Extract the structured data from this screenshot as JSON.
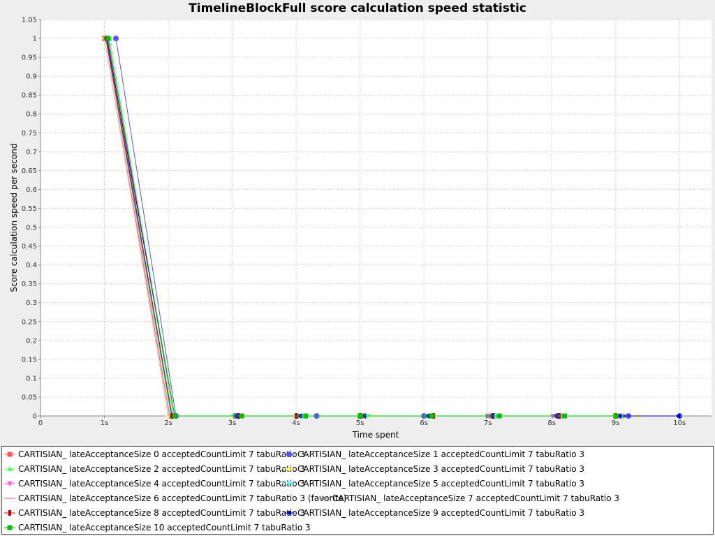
{
  "chart_data": {
    "type": "line",
    "title": "TimelineBlockFull score calculation speed statistic",
    "xlabel": "Time spent",
    "ylabel": "Score calculation speed per second",
    "xlim": [
      0,
      10.5
    ],
    "ylim": [
      0,
      1.05
    ],
    "grid": true,
    "legend_position": "bottom",
    "x_ticks": [
      {
        "value": 0,
        "label": "0"
      },
      {
        "value": 1,
        "label": "1s"
      },
      {
        "value": 2,
        "label": "2s"
      },
      {
        "value": 3,
        "label": "3s"
      },
      {
        "value": 4,
        "label": "4s"
      },
      {
        "value": 5,
        "label": "5s"
      },
      {
        "value": 6,
        "label": "6s"
      },
      {
        "value": 7,
        "label": "7s"
      },
      {
        "value": 8,
        "label": "8s"
      },
      {
        "value": 9,
        "label": "9s"
      },
      {
        "value": 10,
        "label": "10s"
      }
    ],
    "y_ticks": [
      {
        "value": 0,
        "label": "0"
      },
      {
        "value": 0.05,
        "label": "0.05"
      },
      {
        "value": 0.1,
        "label": "0.1"
      },
      {
        "value": 0.15,
        "label": "0.15"
      },
      {
        "value": 0.2,
        "label": "0.2"
      },
      {
        "value": 0.25,
        "label": "0.25"
      },
      {
        "value": 0.3,
        "label": "0.3"
      },
      {
        "value": 0.35,
        "label": "0.35"
      },
      {
        "value": 0.4,
        "label": "0.4"
      },
      {
        "value": 0.45,
        "label": "0.45"
      },
      {
        "value": 0.5,
        "label": "0.5"
      },
      {
        "value": 0.55,
        "label": "0.55"
      },
      {
        "value": 0.6,
        "label": "0.6"
      },
      {
        "value": 0.65,
        "label": "0.65"
      },
      {
        "value": 0.7,
        "label": "0.7"
      },
      {
        "value": 0.75,
        "label": "0.75"
      },
      {
        "value": 0.8,
        "label": "0.8"
      },
      {
        "value": 0.85,
        "label": "0.85"
      },
      {
        "value": 0.9,
        "label": "0.9"
      },
      {
        "value": 0.95,
        "label": "0.95"
      },
      {
        "value": 1,
        "label": "1"
      },
      {
        "value": 1.05,
        "label": "1.05"
      }
    ],
    "series": [
      {
        "name": "CARTISIAN_ lateAcceptanceSize 0 acceptedCountLimit 7 tabuRatio 3",
        "color": "#ff5555",
        "marker": "square",
        "x": [
          1.0,
          2.02,
          3.05,
          4.02,
          5.05,
          6.1,
          7.05,
          8.1,
          9.05
        ],
        "y": [
          1,
          0,
          0,
          0,
          0,
          0,
          0,
          0,
          0
        ]
      },
      {
        "name": "CARTISIAN_ lateAcceptanceSize 1 acceptedCountLimit 7 tabuRatio 3",
        "color": "#5555ff",
        "marker": "circle",
        "x": [
          1.18,
          2.12,
          3.05,
          4.32,
          5.02,
          6.0,
          7.1,
          8.1,
          9.2,
          10.0
        ],
        "y": [
          1,
          0,
          0,
          0,
          0,
          0,
          0,
          0,
          0,
          0
        ]
      },
      {
        "name": "CARTISIAN_ lateAcceptanceSize 2 acceptedCountLimit 7 tabuRatio 3",
        "color": "#55ff55",
        "marker": "triangle-up",
        "x": [
          1.08,
          2.08,
          3.1,
          4.12,
          5.1,
          6.05,
          7.15,
          8.15,
          9.08
        ],
        "y": [
          1,
          0,
          0,
          0,
          0,
          0,
          0,
          0,
          0
        ]
      },
      {
        "name": "CARTISIAN_ lateAcceptanceSize 3 acceptedCountLimit 7 tabuRatio 3",
        "color": "#ffff55",
        "marker": "diamond",
        "x": [
          1.0,
          2.0,
          3.0,
          4.05,
          5.15,
          6.08,
          7.1,
          8.18,
          9.35
        ],
        "y": [
          1,
          0,
          0,
          0,
          0,
          0,
          0,
          0,
          0
        ]
      },
      {
        "name": "CARTISIAN_ lateAcceptanceSize 4 acceptedCountLimit 7 tabuRatio 3",
        "color": "#ff55ff",
        "marker": "triangle-down",
        "x": [
          1.05,
          2.05,
          3.08,
          4.08,
          5.08,
          6.08,
          7.05,
          8.02,
          9.05
        ],
        "y": [
          1,
          0,
          0,
          0,
          0,
          0,
          0,
          0,
          0
        ]
      },
      {
        "name": "CARTISIAN_ lateAcceptanceSize 5 acceptedCountLimit 7 tabuRatio 3",
        "color": "#55ffff",
        "marker": "triangle-down",
        "x": [
          1.02,
          2.03,
          3.02,
          4.1,
          5.12,
          6.05,
          7.12,
          8.15,
          9.1
        ],
        "y": [
          1,
          0,
          0,
          0,
          0,
          0,
          0,
          0,
          0
        ]
      },
      {
        "name": "CARTISIAN_ lateAcceptanceSize 6 acceptedCountLimit 7 tabuRatio 3 (favorite)",
        "color": "#ffaaaa",
        "marker": "none",
        "x": [
          1.0,
          2.0,
          3.0,
          4.0,
          5.0,
          6.0,
          7.0,
          8.0,
          9.0
        ],
        "y": [
          1,
          0,
          0,
          0,
          0,
          0,
          0,
          0,
          0
        ]
      },
      {
        "name": "CARTISIAN_ lateAcceptanceSize 7 acceptedCountLimit 7 tabuRatio 3",
        "color": "#808080",
        "marker": "triangle-right",
        "x": [
          1.02,
          2.05,
          3.05,
          4.05,
          5.05,
          6.05,
          7.0,
          8.1,
          9.15
        ],
        "y": [
          1,
          0,
          0,
          0,
          0,
          0,
          0,
          0,
          0
        ]
      },
      {
        "name": "CARTISIAN_ lateAcceptanceSize 8 acceptedCountLimit 7 tabuRatio 3",
        "color": "#c00000",
        "marker": "rect-tall",
        "x": [
          1.03,
          2.06,
          3.1,
          4.0,
          5.0,
          6.15,
          7.08,
          8.12,
          9.0
        ],
        "y": [
          1,
          0,
          0,
          0,
          0,
          0,
          0,
          0,
          0
        ]
      },
      {
        "name": "CARTISIAN_ lateAcceptanceSize 9 acceptedCountLimit 7 tabuRatio 3",
        "color": "#0000c0",
        "marker": "triangle-left",
        "x": [
          1.04,
          2.1,
          3.06,
          4.06,
          5.06,
          6.06,
          7.06,
          8.06,
          9.06,
          9.98
        ],
        "y": [
          1,
          0,
          0,
          0,
          0,
          0,
          0,
          0,
          0,
          0
        ]
      },
      {
        "name": "CARTISIAN_ lateAcceptanceSize 10 acceptedCountLimit 7 tabuRatio 3",
        "color": "#00c000",
        "marker": "square",
        "x": [
          1.06,
          2.1,
          3.15,
          4.15,
          5.0,
          6.12,
          7.18,
          8.2,
          9.0
        ],
        "y": [
          1,
          0,
          0,
          0,
          0,
          0,
          0,
          0,
          0
        ]
      }
    ]
  }
}
